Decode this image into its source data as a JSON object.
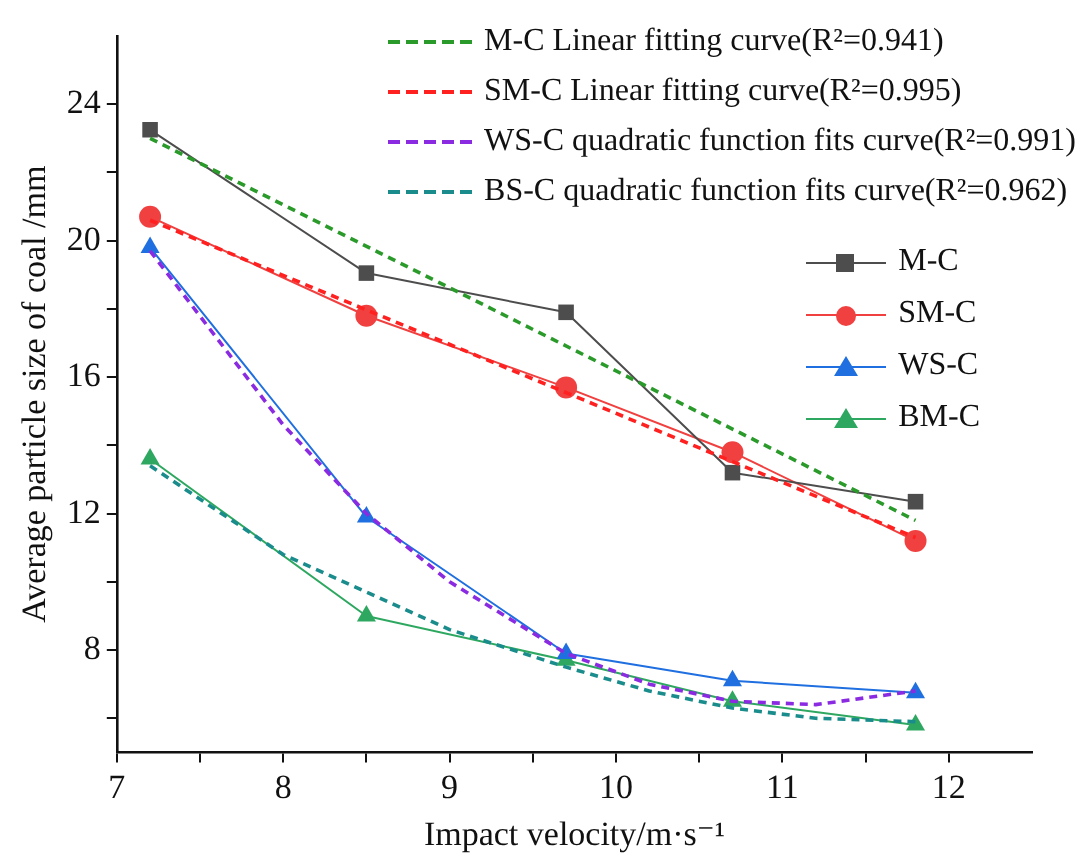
{
  "chart_data": {
    "type": "line",
    "xlabel": "Impact velocity/m·s⁻¹",
    "ylabel": "Average particle size of coal /mm",
    "xlim": [
      7,
      12.5
    ],
    "xticks": [
      7,
      {
        "value": 7.5,
        "label": null
      },
      8,
      {
        "value": 8.5,
        "label": null
      },
      9,
      {
        "value": 9.5,
        "label": null
      },
      10,
      {
        "value": 10.5,
        "label": null
      },
      11,
      {
        "value": 11.5,
        "label": null
      },
      12
    ],
    "ylim": [
      5,
      26
    ],
    "yticks": [
      {
        "value": 6,
        "label": null
      },
      8,
      {
        "value": 10,
        "label": null
      },
      12,
      {
        "value": 14,
        "label": null
      },
      16,
      {
        "value": 18,
        "label": null
      },
      20,
      {
        "value": 22,
        "label": null
      },
      24
    ],
    "grid": false,
    "legend": "top right",
    "series": [
      {
        "name": "M-C Linear fitting curve(R²=0.941)",
        "color": "#2a9a2a",
        "line_style": "dashed",
        "marker": "none",
        "x": [
          7.2,
          11.8
        ],
        "values": [
          23.0,
          11.8
        ]
      },
      {
        "name": "SM-C Linear fitting curve(R²=0.995)",
        "color": "#ff2020",
        "line_style": "dashed",
        "marker": "none",
        "x": [
          7.2,
          11.8
        ],
        "values": [
          20.6,
          11.3
        ]
      },
      {
        "name": "WS-C quadratic function fits curve(R²=0.991)",
        "color": "#8a2be2",
        "line_style": "dashed",
        "marker": "none",
        "x": [
          7.2,
          8,
          8.5,
          9,
          9.7,
          10.2,
          10.7,
          11.2,
          11.8
        ],
        "values": [
          19.7,
          14.6,
          12.0,
          10.0,
          7.9,
          7.0,
          6.5,
          6.4,
          6.8
        ]
      },
      {
        "name": "BS-C quadratic function fits curve(R²=0.962)",
        "color": "#1a8c8c",
        "line_style": "dashed",
        "marker": "none",
        "x": [
          7.2,
          8,
          8.5,
          9,
          9.7,
          10.2,
          10.7,
          11.2,
          11.8
        ],
        "values": [
          13.4,
          10.8,
          9.7,
          8.6,
          7.5,
          6.8,
          6.3,
          6.0,
          5.9
        ]
      },
      {
        "name": "M-C",
        "color": "#4d4d4d",
        "line_style": "solid",
        "marker": "square",
        "x": [
          7.2,
          8.5,
          9.7,
          10.7,
          11.8
        ],
        "values": [
          23.25,
          19.05,
          17.9,
          13.2,
          12.35
        ]
      },
      {
        "name": "SM-C",
        "color": "#f04040",
        "line_style": "solid",
        "marker": "circle",
        "x": [
          7.2,
          8.5,
          9.7,
          10.7,
          11.8
        ],
        "values": [
          20.7,
          17.8,
          15.7,
          13.8,
          11.2
        ]
      },
      {
        "name": "WS-C",
        "color": "#1f6fe0",
        "line_style": "solid",
        "marker": "triangle",
        "x": [
          7.2,
          8.5,
          9.7,
          10.7,
          11.8
        ],
        "values": [
          19.8,
          11.9,
          7.9,
          7.1,
          6.75
        ]
      },
      {
        "name": "BM-C",
        "color": "#2ea860",
        "line_style": "solid",
        "marker": "triangle",
        "x": [
          7.2,
          8.5,
          9.7,
          10.7,
          11.8
        ],
        "values": [
          13.6,
          9.0,
          7.7,
          6.5,
          5.8
        ]
      }
    ]
  }
}
